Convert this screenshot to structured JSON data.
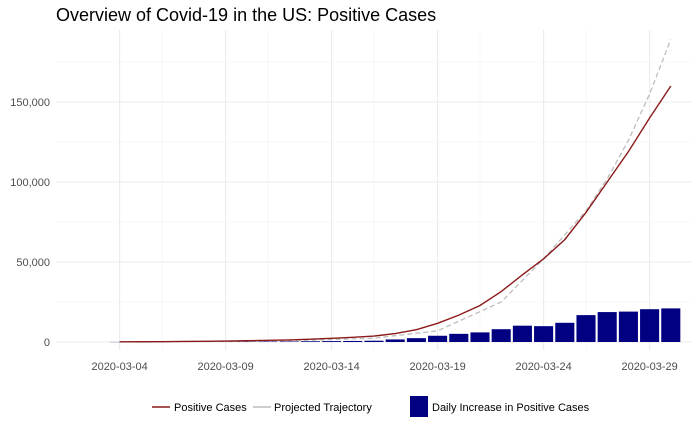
{
  "chart_data": {
    "type": "line",
    "title": "Overview of Covid-19 in the US: Positive Cases",
    "xlabel": "",
    "ylabel": "",
    "x_type": "date",
    "xlim": [
      "2020-03-01",
      "2020-03-31"
    ],
    "ylim": [
      -5000,
      195000
    ],
    "x_ticks": [
      "2020-03-04",
      "2020-03-09",
      "2020-03-14",
      "2020-03-19",
      "2020-03-24",
      "2020-03-29"
    ],
    "y_ticks": [
      0,
      50000,
      100000,
      150000
    ],
    "y_tick_labels": [
      "0",
      "50,000",
      "100,000",
      "150,000"
    ],
    "grid": true,
    "legend_position": "bottom",
    "dates": [
      "2020-03-04",
      "2020-03-05",
      "2020-03-06",
      "2020-03-07",
      "2020-03-08",
      "2020-03-09",
      "2020-03-10",
      "2020-03-11",
      "2020-03-12",
      "2020-03-13",
      "2020-03-14",
      "2020-03-15",
      "2020-03-16",
      "2020-03-17",
      "2020-03-18",
      "2020-03-19",
      "2020-03-20",
      "2020-03-21",
      "2020-03-22",
      "2020-03-23",
      "2020-03-24",
      "2020-03-25",
      "2020-03-26",
      "2020-03-27",
      "2020-03-28",
      "2020-03-29",
      "2020-03-30"
    ],
    "series": [
      {
        "name": "Positive Cases",
        "type": "line",
        "color": "#8b1a1a",
        "values": [
          120,
          160,
          220,
          340,
          420,
          580,
          780,
          1050,
          1300,
          1750,
          2300,
          2950,
          3700,
          5300,
          7700,
          11700,
          16800,
          22800,
          31500,
          42000,
          52000,
          64000,
          81000,
          100000,
          119000,
          140000,
          160000
        ]
      },
      {
        "name": "Projected Trajectory",
        "type": "line",
        "style": "dashed",
        "color": "#bdbdbd",
        "x": [
          "2020-03-04",
          "2020-03-07",
          "2020-03-10",
          "2020-03-13",
          "2020-03-16",
          "2020-03-19",
          "2020-03-22",
          "2020-03-24",
          "2020-03-26",
          "2020-03-27",
          "2020-03-28",
          "2020-03-29",
          "2020-03-30"
        ],
        "values": [
          100,
          250,
          550,
          1100,
          2400,
          7000,
          25000,
          52000,
          82000,
          102000,
          126000,
          155000,
          189000
        ]
      },
      {
        "name": "Daily Increase in Positive Cases",
        "type": "bar",
        "color": "#000080",
        "values": [
          40,
          60,
          80,
          110,
          120,
          160,
          200,
          270,
          300,
          450,
          550,
          650,
          800,
          1600,
          2400,
          3900,
          5100,
          6000,
          8000,
          10200,
          9900,
          12000,
          16800,
          18700,
          19000,
          20500,
          21000
        ]
      }
    ]
  }
}
